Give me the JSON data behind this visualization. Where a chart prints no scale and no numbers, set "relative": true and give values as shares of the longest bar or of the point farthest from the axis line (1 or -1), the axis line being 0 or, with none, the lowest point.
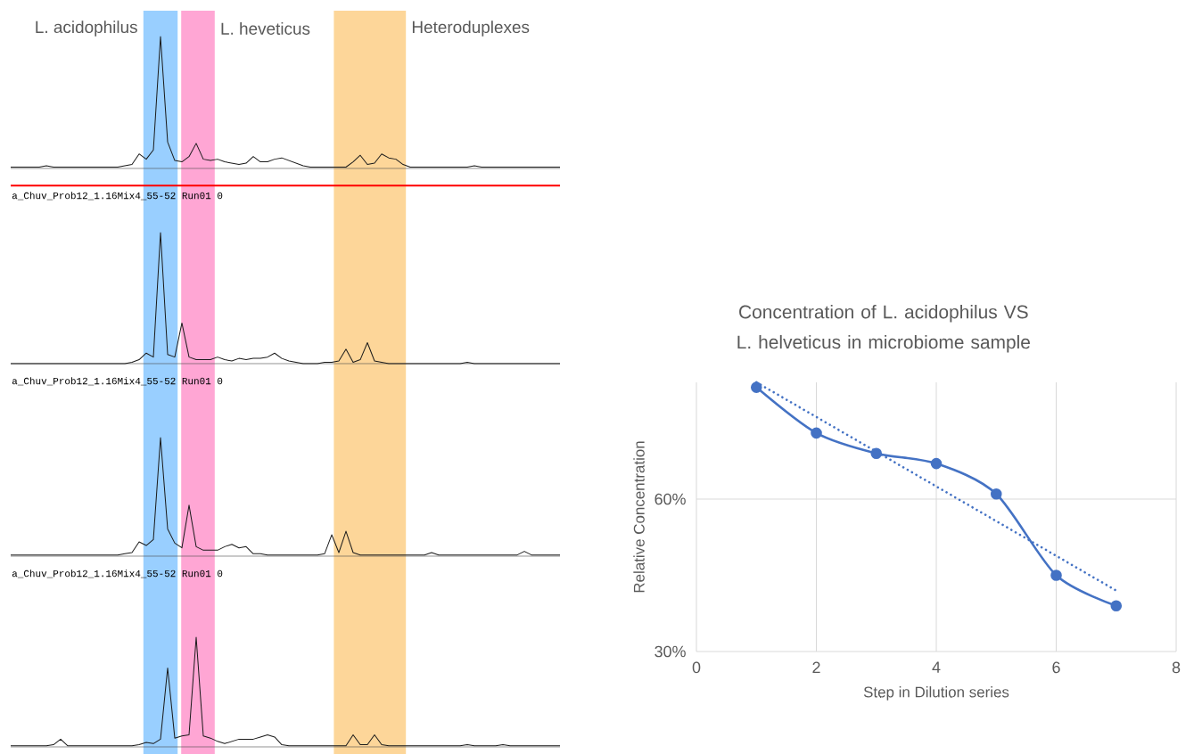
{
  "chart_data": [
    {
      "type": "line",
      "relative": true,
      "color": "#1a1a1a",
      "marker": "none",
      "categories": [
        null,
        null,
        null,
        null,
        null,
        null,
        null,
        null,
        null,
        null,
        null,
        null,
        null,
        null,
        null,
        null,
        null,
        null,
        null,
        null,
        null,
        null,
        null,
        null,
        null,
        null,
        null,
        null,
        null,
        null,
        null,
        null,
        null,
        null,
        null,
        null,
        null,
        null,
        null,
        null,
        null,
        null,
        null,
        null,
        null,
        null,
        null,
        null,
        null,
        null,
        null,
        null,
        null,
        null,
        null,
        null,
        null,
        null,
        null,
        null,
        null,
        null,
        null,
        null,
        null,
        null,
        null,
        null,
        null,
        null,
        null,
        null,
        null,
        null,
        null,
        null,
        null,
        null
      ],
      "values": [
        0.01,
        0.01,
        0.01,
        0.01,
        0.01,
        0.02,
        0.01,
        0.01,
        0.01,
        0.01,
        0.01,
        0.01,
        0.01,
        0.01,
        0.01,
        0.01,
        0.02,
        0.03,
        0.11,
        0.07,
        0.14,
        1,
        0.2,
        0.06,
        0.05,
        0.09,
        0.19,
        0.07,
        0.06,
        0.07,
        0.05,
        0.04,
        0.03,
        0.04,
        0.09,
        0.05,
        0.05,
        0.07,
        0.08,
        0.06,
        0.04,
        0.02,
        0.01,
        0.01,
        0.01,
        0.01,
        0.01,
        0.01,
        0.05,
        0.1,
        0.03,
        0.04,
        0.11,
        0.08,
        0.07,
        0.03,
        0.01,
        0.01,
        0.01,
        0.01,
        0.01,
        0.01,
        0.01,
        0.01,
        0.01,
        0.02,
        0.01,
        0.01,
        0.01,
        0.01,
        0.01,
        0.01,
        0.01,
        0.01,
        0.01,
        0.01,
        0.01,
        0.01
      ],
      "ref_lines": [
        {
          "axis": "y",
          "value": -0.13,
          "color": "#ff0000"
        }
      ],
      "annotations": [
        "L. acidophilus",
        "L. heveticus",
        "Heteroduplexes"
      ]
    },
    {
      "type": "line",
      "relative": true,
      "color": "#1a1a1a",
      "marker": "none",
      "subtitle": "a_Chuv_Prob12_1.16Mix4_55-52 Run01 0",
      "categories": [
        null,
        null,
        null,
        null,
        null,
        null,
        null,
        null,
        null,
        null,
        null,
        null,
        null,
        null,
        null,
        null,
        null,
        null,
        null,
        null,
        null,
        null,
        null,
        null,
        null,
        null,
        null,
        null,
        null,
        null,
        null,
        null,
        null,
        null,
        null,
        null,
        null,
        null,
        null,
        null,
        null,
        null,
        null,
        null,
        null,
        null,
        null,
        null,
        null,
        null,
        null,
        null,
        null,
        null,
        null,
        null,
        null,
        null,
        null,
        null,
        null,
        null,
        null,
        null,
        null,
        null,
        null,
        null,
        null,
        null,
        null,
        null,
        null,
        null,
        null,
        null,
        null,
        null
      ],
      "values": [
        0,
        0,
        0,
        0,
        0,
        0,
        0,
        0,
        0,
        0,
        0,
        0,
        0,
        0,
        0,
        0,
        0,
        0.01,
        0.03,
        0.08,
        0.05,
        1,
        0.07,
        0.05,
        0.31,
        0.05,
        0.03,
        0.03,
        0.03,
        0.05,
        0.03,
        0.02,
        0.04,
        0.03,
        0.04,
        0.04,
        0.05,
        0.08,
        0.04,
        0.02,
        0.01,
        0,
        0,
        0,
        0.01,
        0.01,
        0.02,
        0.11,
        0.01,
        0.03,
        0.16,
        0.02,
        0.01,
        0,
        0,
        0,
        0,
        0,
        0,
        0,
        0,
        0,
        0,
        0,
        0.01,
        0,
        0,
        0,
        0,
        0,
        0,
        0,
        0,
        0,
        0,
        0,
        0,
        0
      ]
    },
    {
      "type": "line",
      "relative": true,
      "color": "#1a1a1a",
      "marker": "none",
      "subtitle": "a_Chuv_Prob12_1.16Mix4_55-52 Run01 0",
      "categories": [
        null,
        null,
        null,
        null,
        null,
        null,
        null,
        null,
        null,
        null,
        null,
        null,
        null,
        null,
        null,
        null,
        null,
        null,
        null,
        null,
        null,
        null,
        null,
        null,
        null,
        null,
        null,
        null,
        null,
        null,
        null,
        null,
        null,
        null,
        null,
        null,
        null,
        null,
        null,
        null,
        null,
        null,
        null,
        null,
        null,
        null,
        null,
        null,
        null,
        null,
        null,
        null,
        null,
        null,
        null,
        null,
        null,
        null,
        null,
        null,
        null,
        null,
        null,
        null,
        null,
        null,
        null,
        null,
        null,
        null,
        null,
        null,
        null,
        null,
        null,
        null,
        null,
        null
      ],
      "values": [
        0.01,
        0.01,
        0.01,
        0.01,
        0.01,
        0.01,
        0.01,
        0.01,
        0.01,
        0.01,
        0.01,
        0.01,
        0.01,
        0.01,
        0.01,
        0.01,
        0.02,
        0.03,
        0.12,
        0.09,
        0.14,
        1,
        0.23,
        0.11,
        0.07,
        0.43,
        0.08,
        0.05,
        0.05,
        0.05,
        0.08,
        0.1,
        0.07,
        0.08,
        0.02,
        0.02,
        0.01,
        0.01,
        0.01,
        0.01,
        0.01,
        0.01,
        0.01,
        0.01,
        0.02,
        0.18,
        0.03,
        0.21,
        0.03,
        0.01,
        0.01,
        0.01,
        0.01,
        0.01,
        0.01,
        0.01,
        0.01,
        0.01,
        0.01,
        0.03,
        0.01,
        0.01,
        0.01,
        0.01,
        0.01,
        0.01,
        0.01,
        0.01,
        0.01,
        0.01,
        0.01,
        0.01,
        0.04,
        0.01,
        0.01,
        0.01,
        0.01,
        0.01
      ]
    },
    {
      "type": "line",
      "relative": true,
      "color": "#1a1a1a",
      "marker": "none",
      "subtitle": "a_Chuv_Prob12_1.16Mix4_55-52 Run01 0",
      "categories": [
        null,
        null,
        null,
        null,
        null,
        null,
        null,
        null,
        null,
        null,
        null,
        null,
        null,
        null,
        null,
        null,
        null,
        null,
        null,
        null,
        null,
        null,
        null,
        null,
        null,
        null,
        null,
        null,
        null,
        null,
        null,
        null,
        null,
        null,
        null,
        null,
        null,
        null,
        null,
        null,
        null,
        null,
        null,
        null,
        null,
        null,
        null,
        null,
        null,
        null,
        null,
        null,
        null,
        null,
        null,
        null,
        null,
        null,
        null,
        null,
        null,
        null,
        null,
        null,
        null,
        null,
        null,
        null,
        null,
        null,
        null,
        null,
        null,
        null,
        null,
        null,
        null,
        null
      ],
      "values": [
        0.01,
        0.01,
        0.01,
        0.01,
        0.01,
        0.01,
        0.02,
        0.07,
        0.01,
        0.01,
        0.01,
        0.01,
        0.01,
        0.01,
        0.01,
        0.01,
        0.01,
        0.01,
        0.02,
        0.04,
        0.03,
        0.07,
        0.72,
        0.08,
        0.1,
        0.11,
        1,
        0.1,
        0.08,
        0.05,
        0.03,
        0.05,
        0.07,
        0.07,
        0.07,
        0.09,
        0.11,
        0.09,
        0.02,
        0.01,
        0.01,
        0.01,
        0.01,
        0.01,
        0.01,
        0.01,
        0.01,
        0.01,
        0.11,
        0.02,
        0.02,
        0.11,
        0.02,
        0.01,
        0.01,
        0.01,
        0.01,
        0.01,
        0.01,
        0.01,
        0.01,
        0.01,
        0.01,
        0.01,
        0.02,
        0.01,
        0.01,
        0.01,
        0.01,
        0.02,
        0.01,
        0.01,
        0.01,
        0.01,
        0.01,
        0.01,
        0.01,
        0.01
      ]
    },
    {
      "type": "line",
      "title": "Concentration of L. acidophilus VS L. helveticus in microbiome sample",
      "xlabel": "Step in Dilution series",
      "ylabel": "Relative Concentration",
      "x": [
        1,
        2,
        3,
        4,
        5,
        6,
        7
      ],
      "series": [
        {
          "color": "#4472c4",
          "marker": "circle",
          "line_style": "solid",
          "values": [
            82,
            73,
            69,
            67,
            61,
            45,
            39
          ]
        },
        {
          "type": "line",
          "color": "#4472c4",
          "marker": "none",
          "line_style": "dotted",
          "x": [
            1,
            7
          ],
          "values": [
            83,
            42
          ]
        }
      ],
      "xlim": [
        0,
        8
      ],
      "xticks": [
        0,
        2,
        4,
        6,
        8
      ],
      "ylim": [
        30,
        83
      ],
      "yticks": [
        {
          "value": 30,
          "label": "30%"
        },
        {
          "value": 60,
          "label": "60%"
        }
      ],
      "grid": true
    }
  ]
}
